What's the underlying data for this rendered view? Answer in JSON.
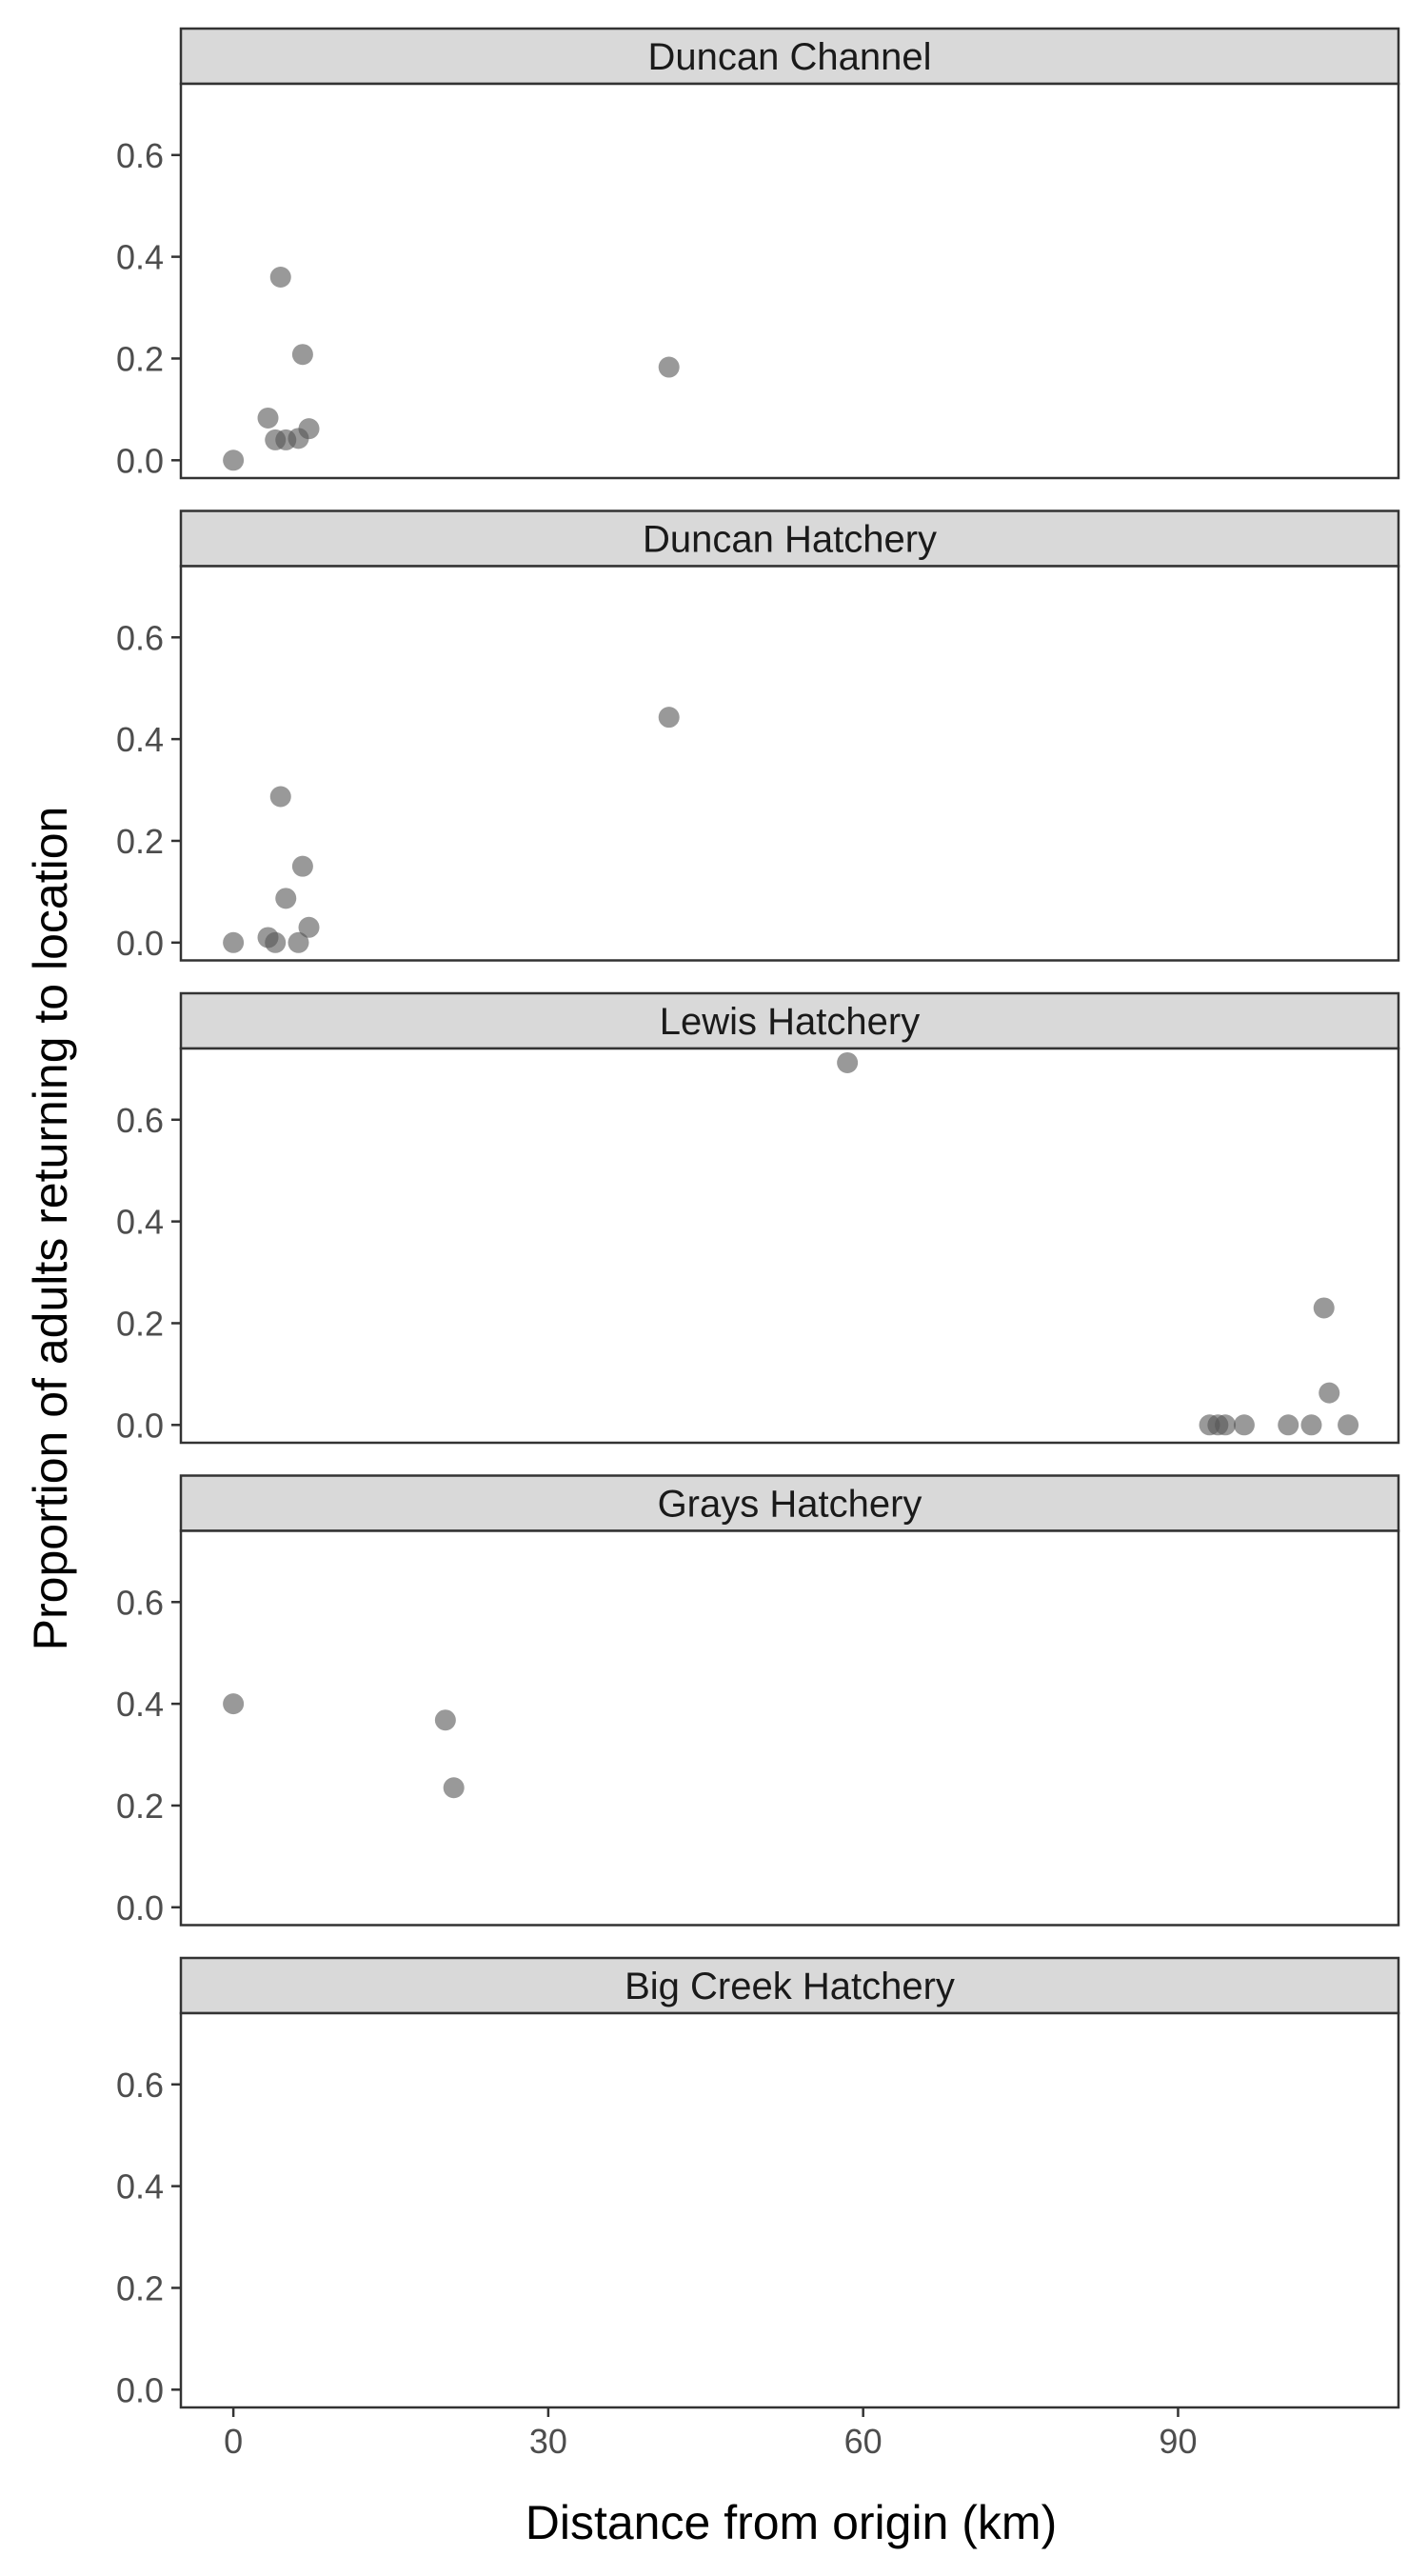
{
  "chart_data": {
    "type": "scatter",
    "layout": "faceted-vertical",
    "xlabel": "Distance from origin (km)",
    "ylabel": "Proportion of adults returning to location",
    "xlim": [
      -5,
      111
    ],
    "ylim": [
      -0.035,
      0.74
    ],
    "xticks": [
      {
        "value": 0,
        "label": "0"
      },
      {
        "value": 30,
        "label": "30"
      },
      {
        "value": 60,
        "label": "60"
      },
      {
        "value": 90,
        "label": "90"
      }
    ],
    "yticks": [
      {
        "value": 0,
        "label": "0.0"
      },
      {
        "value": 0.2,
        "label": "0.2"
      },
      {
        "value": 0.4,
        "label": "0.4"
      },
      {
        "value": 0.6,
        "label": "0.6"
      }
    ],
    "grid": false,
    "point_color": "#555555",
    "point_opacity": 0.6,
    "strip_color": "#d9d9d9",
    "frame_color": "#333333",
    "facets": [
      {
        "name": "Duncan Channel",
        "points": [
          {
            "x": 0,
            "y": 0.0
          },
          {
            "x": 3.3,
            "y": 0.083
          },
          {
            "x": 4.0,
            "y": 0.04
          },
          {
            "x": 4.5,
            "y": 0.36
          },
          {
            "x": 5.0,
            "y": 0.04
          },
          {
            "x": 6.2,
            "y": 0.043
          },
          {
            "x": 6.6,
            "y": 0.208
          },
          {
            "x": 7.2,
            "y": 0.062
          },
          {
            "x": 41.5,
            "y": 0.183
          }
        ]
      },
      {
        "name": "Duncan Hatchery",
        "points": [
          {
            "x": 0,
            "y": 0.0
          },
          {
            "x": 3.3,
            "y": 0.01
          },
          {
            "x": 4.0,
            "y": 0.0
          },
          {
            "x": 4.5,
            "y": 0.287
          },
          {
            "x": 5.0,
            "y": 0.087
          },
          {
            "x": 6.2,
            "y": 0.0
          },
          {
            "x": 6.6,
            "y": 0.15
          },
          {
            "x": 7.2,
            "y": 0.03
          },
          {
            "x": 41.5,
            "y": 0.443
          }
        ]
      },
      {
        "name": "Lewis Hatchery",
        "points": [
          {
            "x": 58.5,
            "y": 0.712
          },
          {
            "x": 93.0,
            "y": 0.0
          },
          {
            "x": 93.8,
            "y": 0.0
          },
          {
            "x": 94.5,
            "y": 0.0
          },
          {
            "x": 96.3,
            "y": 0.0
          },
          {
            "x": 100.5,
            "y": 0.0
          },
          {
            "x": 102.7,
            "y": 0.0
          },
          {
            "x": 103.9,
            "y": 0.23
          },
          {
            "x": 104.4,
            "y": 0.063
          },
          {
            "x": 106.2,
            "y": 0.0
          }
        ]
      },
      {
        "name": "Grays Hatchery",
        "points": [
          {
            "x": 0,
            "y": 0.4
          },
          {
            "x": 20.2,
            "y": 0.368
          },
          {
            "x": 21.0,
            "y": 0.235
          }
        ]
      },
      {
        "name": "Big Creek Hatchery",
        "points": []
      }
    ]
  }
}
